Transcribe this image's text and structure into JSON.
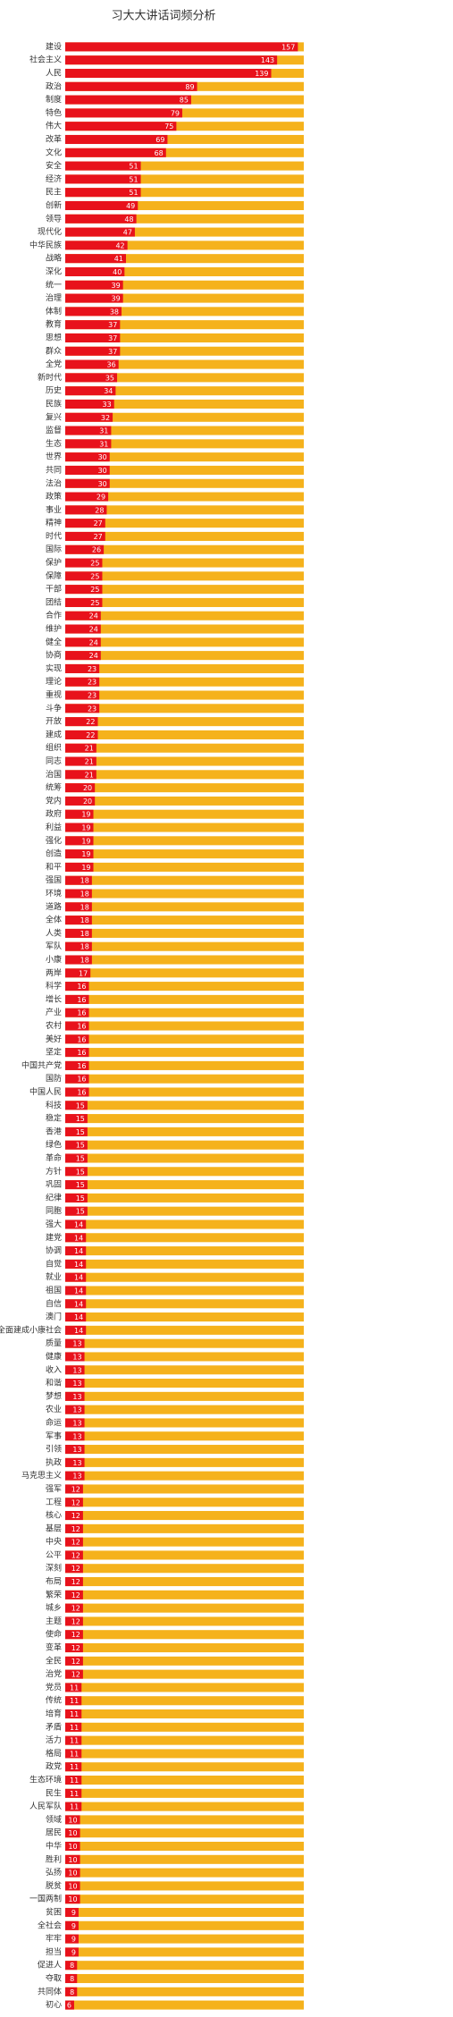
{
  "chart_data": {
    "type": "bar",
    "orientation": "horizontal",
    "title": "习大大讲话词频分析",
    "categories": [
      "建设",
      "社会主义",
      "人民",
      "政治",
      "制度",
      "特色",
      "伟大",
      "改革",
      "文化",
      "安全",
      "经济",
      "民主",
      "创新",
      "领导",
      "现代化",
      "中华民族",
      "战略",
      "深化",
      "统一",
      "治理",
      "体制",
      "教育",
      "思想",
      "群众",
      "全党",
      "新时代",
      "历史",
      "民族",
      "复兴",
      "监督",
      "生态",
      "世界",
      "共同",
      "法治",
      "政策",
      "事业",
      "精神",
      "时代",
      "国际",
      "保护",
      "保障",
      "干部",
      "团结",
      "合作",
      "维护",
      "健全",
      "协商",
      "实现",
      "理论",
      "重视",
      "斗争",
      "开放",
      "建成",
      "组织",
      "同志",
      "治国",
      "统筹",
      "党内",
      "政府",
      "利益",
      "强化",
      "创造",
      "和平",
      "强国",
      "环境",
      "道路",
      "全体",
      "人类",
      "军队",
      "小康",
      "两岸",
      "科学",
      "增长",
      "产业",
      "农村",
      "美好",
      "坚定",
      "中国共产党",
      "国防",
      "中国人民",
      "科技",
      "稳定",
      "香港",
      "绿色",
      "革命",
      "方针",
      "巩固",
      "纪律",
      "同胞",
      "强大",
      "建党",
      "协调",
      "自觉",
      "就业",
      "祖国",
      "自信",
      "澳门",
      "全面建成小康社会",
      "质量",
      "健康",
      "收入",
      "和谐",
      "梦想",
      "农业",
      "命运",
      "军事",
      "引领",
      "执政",
      "马克思主义",
      "强军",
      "工程",
      "核心",
      "基层",
      "中央",
      "公平",
      "深刻",
      "布局",
      "繁荣",
      "城乡",
      "主题",
      "使命",
      "变革",
      "全民",
      "治党",
      "党员",
      "传统",
      "培育",
      "矛盾",
      "活力",
      "格局",
      "政党",
      "生态环境",
      "民生",
      "人民军队",
      "领域",
      "居民",
      "中华",
      "胜利",
      "弘扬",
      "脱贫",
      "一国两制",
      "贫困",
      "全社会",
      "牢牢",
      "担当",
      "促进人",
      "夺取",
      "共同体",
      "初心"
    ],
    "values": [
      157,
      143,
      139,
      89,
      85,
      79,
      75,
      69,
      68,
      51,
      51,
      51,
      49,
      48,
      47,
      42,
      41,
      40,
      39,
      39,
      38,
      37,
      37,
      37,
      36,
      35,
      34,
      33,
      32,
      31,
      31,
      30,
      30,
      30,
      29,
      28,
      27,
      27,
      26,
      25,
      25,
      25,
      25,
      24,
      24,
      24,
      24,
      23,
      23,
      23,
      23,
      22,
      22,
      21,
      21,
      21,
      20,
      20,
      19,
      19,
      19,
      19,
      19,
      18,
      18,
      18,
      18,
      18,
      18,
      18,
      17,
      16,
      16,
      16,
      16,
      16,
      16,
      16,
      16,
      16,
      15,
      15,
      15,
      15,
      15,
      15,
      15,
      15,
      15,
      14,
      14,
      14,
      14,
      14,
      14,
      14,
      14,
      14,
      13,
      13,
      13,
      13,
      13,
      13,
      13,
      13,
      13,
      13,
      13,
      12,
      12,
      12,
      12,
      12,
      12,
      12,
      12,
      12,
      12,
      12,
      12,
      12,
      12,
      12,
      11,
      11,
      11,
      11,
      11,
      11,
      11,
      11,
      11,
      11,
      10,
      10,
      10,
      10,
      10,
      10,
      10,
      9,
      9,
      9,
      9,
      8,
      8,
      8,
      6
    ],
    "color": "#e8121b",
    "track_color": "#f5b21c",
    "xlim": [
      0,
      161
    ]
  }
}
